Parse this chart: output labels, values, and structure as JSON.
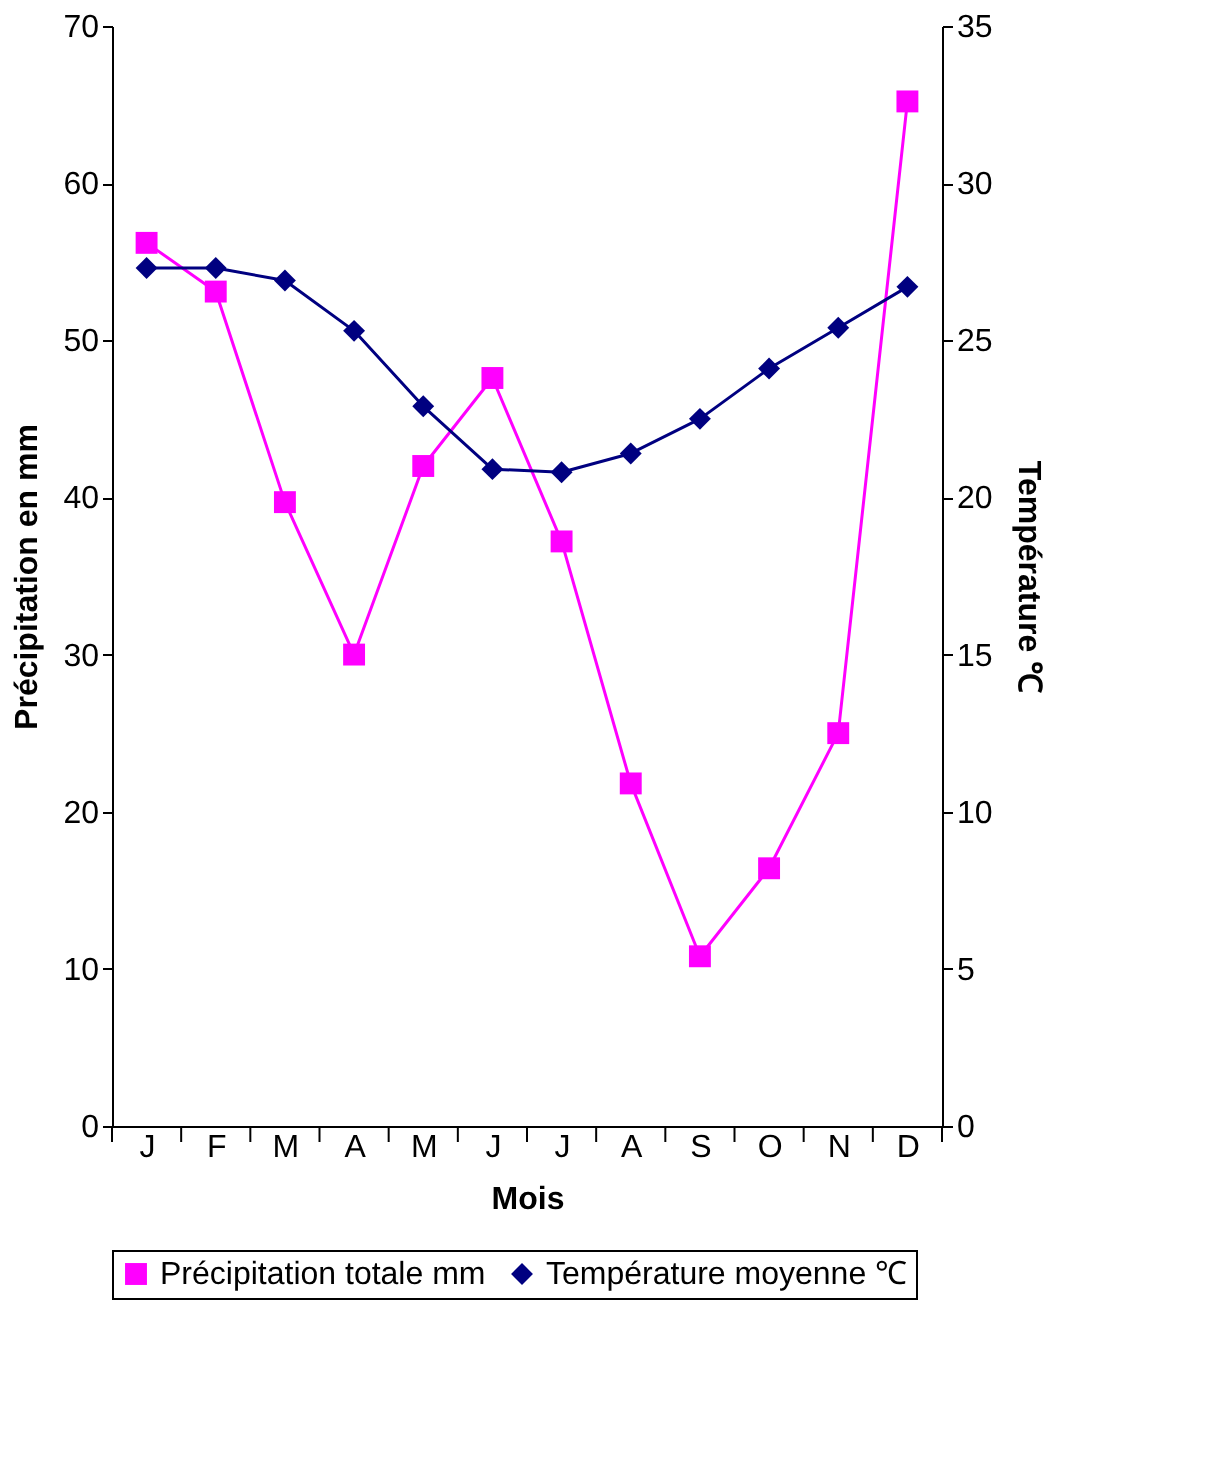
{
  "chart_data": {
    "type": "line",
    "xlabel": "Mois",
    "ylabel": "Précipitation en mm",
    "y2label": "Température ℃",
    "categories": [
      "J",
      "F",
      "M",
      "A",
      "M",
      "J",
      "J",
      "A",
      "S",
      "O",
      "N",
      "D"
    ],
    "series": [
      {
        "name": "Précipitation totale mm",
        "color": "#ff00ff",
        "marker": "square",
        "values": [
          56.2,
          53.1,
          39.7,
          30.0,
          42.0,
          47.6,
          37.2,
          21.8,
          10.8,
          16.4,
          25.0,
          65.2
        ]
      },
      {
        "name": "Température moyenne ℃",
        "color": "#000080",
        "marker": "diamond",
        "axis": "y2",
        "values": [
          27.3,
          27.3,
          26.9,
          25.3,
          22.9,
          20.9,
          20.8,
          21.4,
          22.5,
          24.1,
          25.4,
          26.7
        ]
      }
    ],
    "ylim": [
      0,
      70
    ],
    "yticks": [
      0,
      10,
      20,
      30,
      40,
      50,
      60,
      70
    ],
    "y2lim": [
      0,
      35
    ],
    "y2ticks": [
      0,
      5,
      10,
      15,
      20,
      25,
      30,
      35
    ],
    "grid": false,
    "legend": "bottom",
    "line_style": "solid"
  }
}
